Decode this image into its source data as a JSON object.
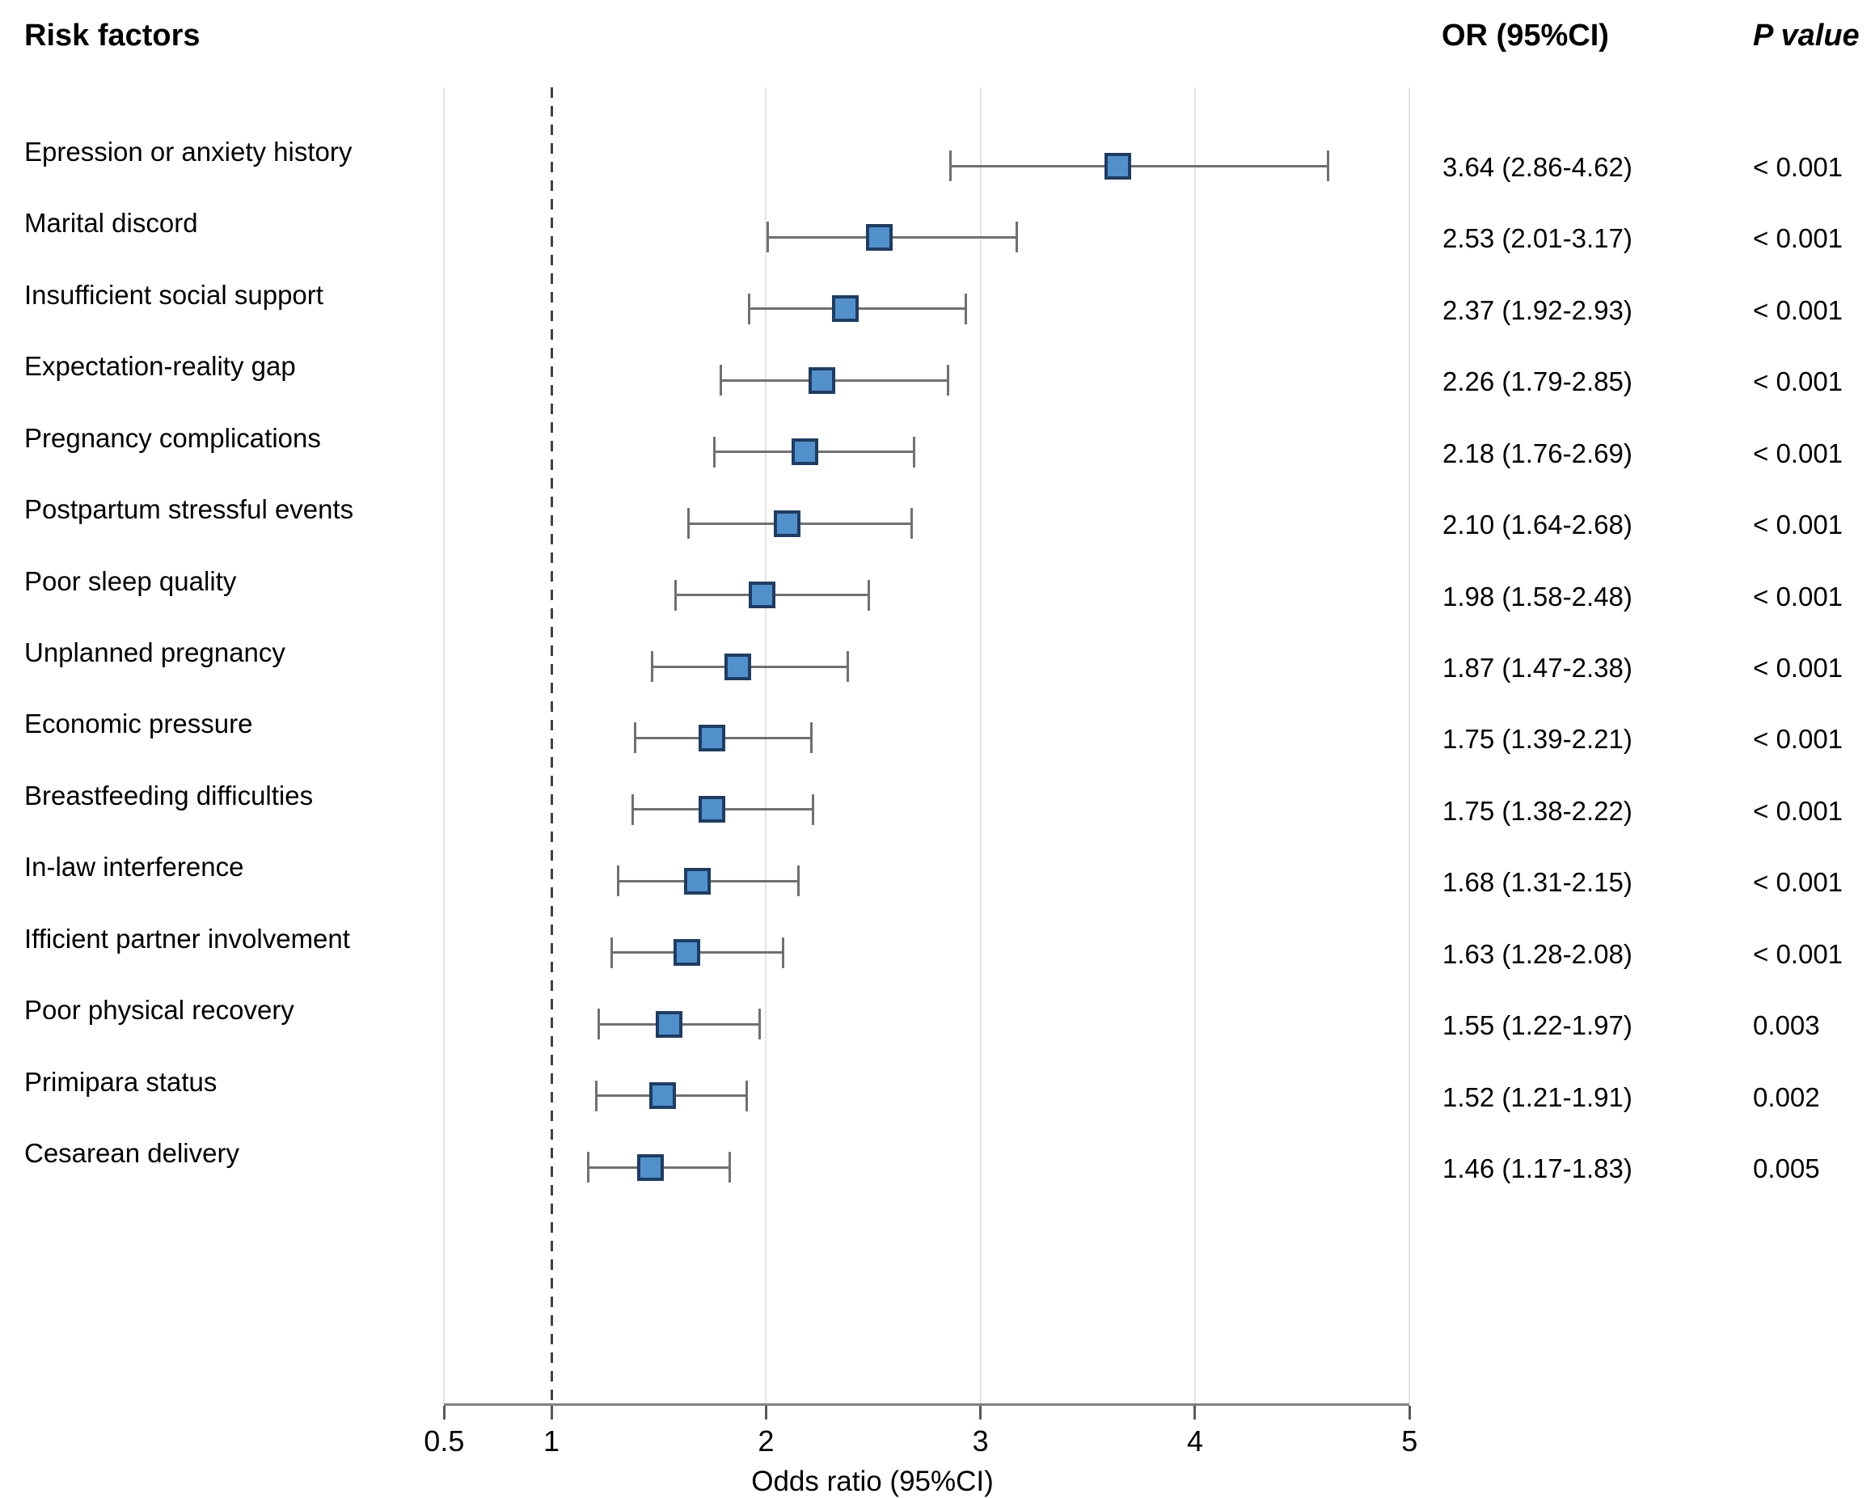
{
  "header": {
    "risk_factors": "Risk factors",
    "or_ci": "OR (95%CI)",
    "p_value": "P value"
  },
  "colors": {
    "marker_fill": "#5290CC",
    "marker_border": "#1F3C61",
    "whisker": "#707070",
    "gridline": "#e4e4e4",
    "dashed_reference": "#404040",
    "axis_line": "#808080",
    "tick_mark": "#595959",
    "text": "#000000"
  },
  "chart_data": {
    "type": "forest",
    "title": "",
    "xlabel": "Odds ratio (95%CI)",
    "xlim": [
      0.5,
      5
    ],
    "x_scale": "linear",
    "reference_line": 1,
    "grid": "vertical-light",
    "ticks": [
      {
        "value": 0.5,
        "label": "0.5"
      },
      {
        "value": 1,
        "label": "1"
      },
      {
        "value": 2,
        "label": "2"
      },
      {
        "value": 3,
        "label": "3"
      },
      {
        "value": 4,
        "label": "4"
      },
      {
        "value": 5,
        "label": "5"
      }
    ],
    "rows": [
      {
        "label": "Epression or anxiety history",
        "or": 3.64,
        "ci_low": 2.86,
        "ci_high": 4.62,
        "or_text": "3.64 (2.86-4.62)",
        "p": "< 0.001"
      },
      {
        "label": "Marital discord",
        "or": 2.53,
        "ci_low": 2.01,
        "ci_high": 3.17,
        "or_text": "2.53 (2.01-3.17)",
        "p": "< 0.001"
      },
      {
        "label": "Insufficient social support",
        "or": 2.37,
        "ci_low": 1.92,
        "ci_high": 2.93,
        "or_text": "2.37 (1.92-2.93)",
        "p": "< 0.001"
      },
      {
        "label": "Expectation-reality gap",
        "or": 2.26,
        "ci_low": 1.79,
        "ci_high": 2.85,
        "or_text": "2.26 (1.79-2.85)",
        "p": "< 0.001"
      },
      {
        "label": "Pregnancy complications",
        "or": 2.18,
        "ci_low": 1.76,
        "ci_high": 2.69,
        "or_text": "2.18 (1.76-2.69)",
        "p": "< 0.001"
      },
      {
        "label": "Postpartum stressful events",
        "or": 2.1,
        "ci_low": 1.64,
        "ci_high": 2.68,
        "or_text": "2.10 (1.64-2.68)",
        "p": "< 0.001"
      },
      {
        "label": "Poor sleep quality",
        "or": 1.98,
        "ci_low": 1.58,
        "ci_high": 2.48,
        "or_text": "1.98 (1.58-2.48)",
        "p": "< 0.001"
      },
      {
        "label": "Unplanned pregnancy",
        "or": 1.87,
        "ci_low": 1.47,
        "ci_high": 2.38,
        "or_text": "1.87 (1.47-2.38)",
        "p": "< 0.001"
      },
      {
        "label": "Economic pressure",
        "or": 1.75,
        "ci_low": 1.39,
        "ci_high": 2.21,
        "or_text": "1.75 (1.39-2.21)",
        "p": "< 0.001"
      },
      {
        "label": "Breastfeeding difficulties",
        "or": 1.75,
        "ci_low": 1.38,
        "ci_high": 2.22,
        "or_text": "1.75 (1.38-2.22)",
        "p": "< 0.001"
      },
      {
        "label": "In-law interference",
        "or": 1.68,
        "ci_low": 1.31,
        "ci_high": 2.15,
        "or_text": "1.68 (1.31-2.15)",
        "p": "< 0.001"
      },
      {
        "label": "Ifficient partner involvement",
        "or": 1.63,
        "ci_low": 1.28,
        "ci_high": 2.08,
        "or_text": "1.63 (1.28-2.08)",
        "p": "< 0.001"
      },
      {
        "label": "Poor physical recovery",
        "or": 1.55,
        "ci_low": 1.22,
        "ci_high": 1.97,
        "or_text": "1.55 (1.22-1.97)",
        "p": "0.003"
      },
      {
        "label": "Primipara status",
        "or": 1.52,
        "ci_low": 1.21,
        "ci_high": 1.91,
        "or_text": "1.52 (1.21-1.91)",
        "p": "0.002"
      },
      {
        "label": "Cesarean delivery",
        "or": 1.46,
        "ci_low": 1.17,
        "ci_high": 1.83,
        "or_text": "1.46 (1.17-1.83)",
        "p": "0.005"
      }
    ]
  }
}
